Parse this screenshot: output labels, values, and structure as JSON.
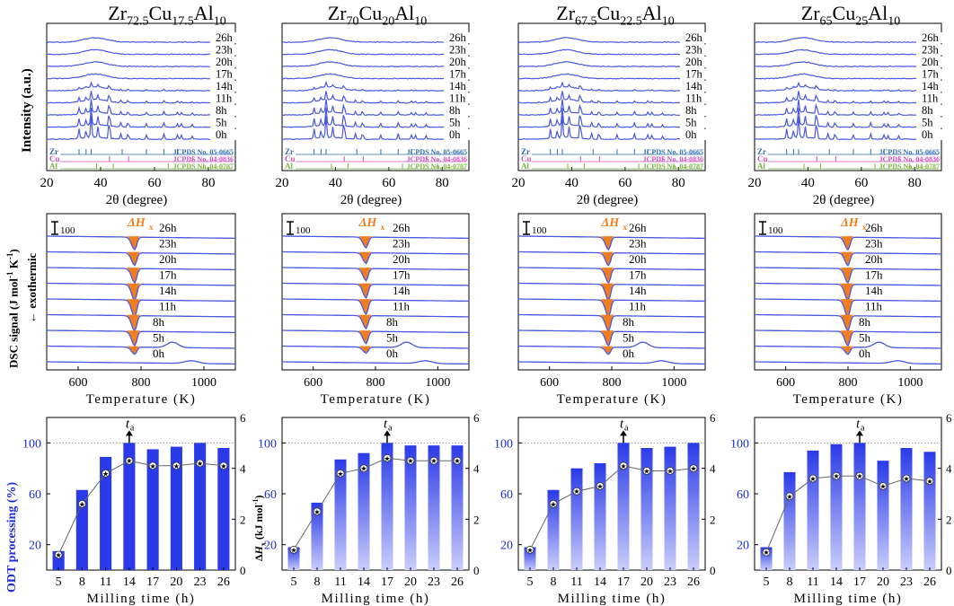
{
  "figure": {
    "columns": [
      {
        "title_parts": [
          "Zr",
          "72.5",
          "Cu",
          "17.5",
          "Al",
          "10"
        ]
      },
      {
        "title_parts": [
          "Zr",
          "70",
          "Cu",
          "20",
          "Al",
          "10"
        ]
      },
      {
        "title_parts": [
          "Zr",
          "67.5",
          "Cu",
          "22.5",
          "Al",
          "10"
        ]
      },
      {
        "title_parts": [
          "Zr",
          "65",
          "Cu",
          "25",
          "Al",
          "10"
        ]
      }
    ],
    "left_labels": {
      "xrd": "Intensity (a.u.)",
      "dsc": "DSC signal (J mol",
      "dsc_sup1": "-1",
      "dsc_k": " K",
      "dsc_sup2": "-1",
      "dsc_close": ")",
      "dsc_arrow": "← exothermic",
      "odt": "ODT processing (%)"
    },
    "right_label_prefix": "Δ",
    "right_label_H": "H",
    "right_label_x": "x",
    "right_label_units": " (kJ mol",
    "right_label_sup": "-1",
    "right_label_close": ")",
    "scale_bar_label": "100",
    "delta_h_label": "ΔH",
    "delta_h_sub": "x",
    "ta_label": "t",
    "ta_sub": "a",
    "colors": {
      "blue": "#1f2fd6",
      "line_blue": "#4a57e0",
      "orange": "#f07d1e",
      "zr": "#2f6fb5",
      "cu": "#d04fbf",
      "al": "#79b541",
      "bar_top": "#2a3ae8",
      "bar_bottom": "#c9cdfa"
    }
  },
  "chart_data": [
    {
      "type": "line",
      "panel": "xrd",
      "xlabel": "2θ (degree)",
      "xlim": [
        20,
        90
      ],
      "xticks": [
        20,
        40,
        60,
        80
      ],
      "ylabel": "Intensity (a.u.)",
      "series_labels": [
        "26h",
        "23h",
        "20h",
        "17h",
        "14h",
        "11h",
        "8h",
        "5h",
        "0h"
      ],
      "references": [
        {
          "element": "Zr",
          "card": "JCPDS No. 05-0665"
        },
        {
          "element": "Cu",
          "card": "JCPDS No. 04-0836"
        },
        {
          "element": "Al",
          "card": "JCPDS No. 04-0787"
        }
      ]
    },
    {
      "type": "line",
      "panel": "dsc",
      "xlabel": "Temperature (K)",
      "xlim": [
        500,
        1100
      ],
      "xticks": [
        600,
        800,
        1000
      ],
      "ylabel": "DSC signal (J mol-1 K-1)",
      "series_labels": [
        "26h",
        "23h",
        "20h",
        "17h",
        "14h",
        "11h",
        "8h",
        "5h",
        "0h"
      ],
      "peak_label": "ΔHx",
      "peak_temperatures_K": [
        780,
        770,
        790,
        800
      ]
    },
    {
      "type": "bar",
      "panel": "odt",
      "title": "Zr72.5Cu17.5Al10",
      "categories": [
        "5",
        "8",
        "11",
        "14",
        "17",
        "20",
        "23",
        "26"
      ],
      "series": [
        {
          "name": "ODT processing (%)",
          "values": [
            15,
            63,
            89,
            100,
            95,
            97,
            100,
            96
          ]
        },
        {
          "name": "ΔHx (kJ mol-1)",
          "values": [
            0.6,
            2.6,
            3.8,
            4.3,
            4.1,
            4.1,
            4.2,
            4.1
          ]
        }
      ],
      "ta_category": "14",
      "xlabel": "Milling time (h)",
      "ylabel": "ODT processing (%)",
      "ylim": [
        0,
        120
      ],
      "yticks": [
        20,
        60,
        100
      ],
      "y2label": "ΔHx (kJ mol-1)",
      "y2lim": [
        0,
        6
      ],
      "y2ticks": [
        0,
        2,
        4,
        6
      ]
    },
    {
      "type": "bar",
      "panel": "odt",
      "title": "Zr70Cu20Al10",
      "categories": [
        "5",
        "8",
        "11",
        "14",
        "17",
        "20",
        "23",
        "26"
      ],
      "series": [
        {
          "name": "ODT processing (%)",
          "values": [
            18,
            53,
            87,
            92,
            100,
            98,
            98,
            98
          ]
        },
        {
          "name": "ΔHx (kJ mol-1)",
          "values": [
            0.8,
            2.3,
            3.8,
            4.0,
            4.4,
            4.3,
            4.3,
            4.3
          ]
        }
      ],
      "ta_category": "17",
      "xlabel": "Milling time (h)",
      "ylabel": "ODT processing (%)",
      "ylim": [
        0,
        120
      ],
      "yticks": [
        20,
        60,
        100
      ],
      "y2label": "ΔHx (kJ mol-1)",
      "y2lim": [
        0,
        6
      ],
      "y2ticks": [
        0,
        2,
        4,
        6
      ]
    },
    {
      "type": "bar",
      "panel": "odt",
      "title": "Zr67.5Cu22.5Al10",
      "categories": [
        "5",
        "8",
        "11",
        "14",
        "17",
        "20",
        "23",
        "26"
      ],
      "series": [
        {
          "name": "ODT processing (%)",
          "values": [
            18,
            63,
            80,
            84,
            100,
            96,
            97,
            100
          ]
        },
        {
          "name": "ΔHx (kJ mol-1)",
          "values": [
            0.8,
            2.6,
            3.1,
            3.3,
            4.1,
            3.9,
            3.9,
            4.0
          ]
        }
      ],
      "ta_category": "17",
      "xlabel": "Milling time (h)",
      "ylabel": "ODT processing (%)",
      "ylim": [
        0,
        120
      ],
      "yticks": [
        20,
        60,
        100
      ],
      "y2label": "ΔHx (kJ mol-1)",
      "y2lim": [
        0,
        6
      ],
      "y2ticks": [
        0,
        2,
        4,
        6
      ]
    },
    {
      "type": "bar",
      "panel": "odt",
      "title": "Zr65Cu25Al10",
      "categories": [
        "5",
        "8",
        "11",
        "14",
        "17",
        "20",
        "23",
        "26"
      ],
      "series": [
        {
          "name": "ODT processing (%)",
          "values": [
            18,
            77,
            94,
            99,
            100,
            86,
            96,
            93
          ]
        },
        {
          "name": "ΔHx (kJ mol-1)",
          "values": [
            0.7,
            2.9,
            3.6,
            3.7,
            3.7,
            3.3,
            3.6,
            3.5
          ]
        }
      ],
      "ta_category": "17",
      "xlabel": "Milling time (h)",
      "ylabel": "ODT processing (%)",
      "ylim": [
        0,
        120
      ],
      "yticks": [
        20,
        60,
        100
      ],
      "y2label": "ΔHx (kJ mol-1)",
      "y2lim": [
        0,
        6
      ],
      "y2ticks": [
        0,
        2,
        4,
        6
      ]
    }
  ]
}
